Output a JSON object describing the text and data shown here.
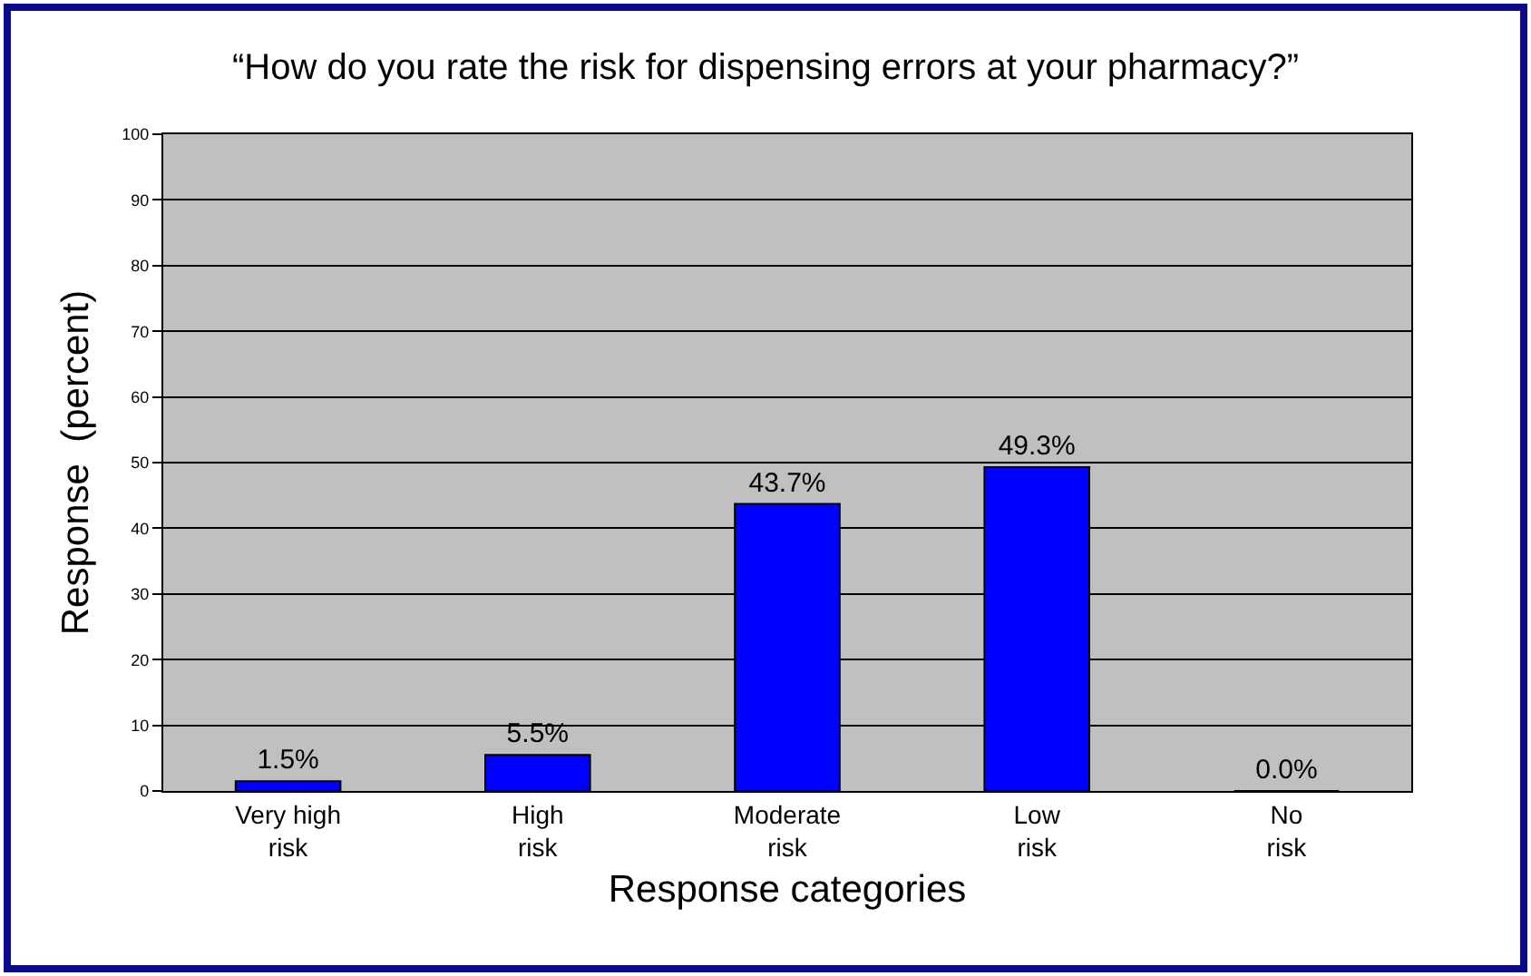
{
  "chart_data": {
    "type": "bar",
    "title": "“How do you rate the risk for dispensing errors at your pharmacy?”",
    "xlabel": "Response categories",
    "ylabel": "Response  (percent)",
    "categories": [
      "Very high\nrisk",
      "High\nrisk",
      "Moderate\nrisk",
      "Low\nrisk",
      "No\nrisk"
    ],
    "values": [
      1.5,
      5.5,
      43.7,
      49.3,
      0.0
    ],
    "value_labels": [
      "1.5%",
      "5.5%",
      "43.7%",
      "49.3%",
      "0.0%"
    ],
    "color": "#0000ff",
    "ylim": [
      0,
      100
    ],
    "yticks": [
      0,
      10,
      20,
      30,
      40,
      50,
      60,
      70,
      80,
      90,
      100
    ],
    "grid": "y"
  }
}
